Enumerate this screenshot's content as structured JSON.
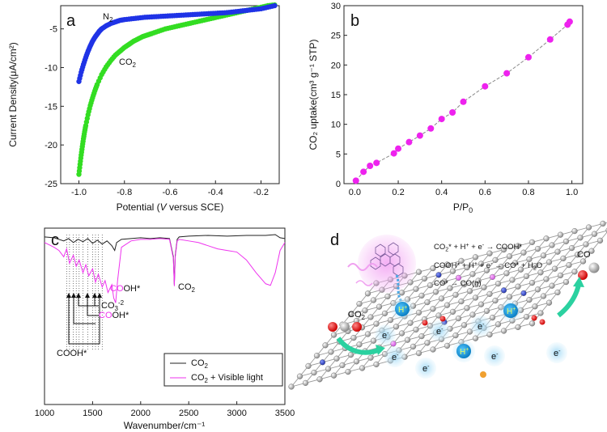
{
  "chart_data": [
    {
      "panel": "a",
      "type": "scatter",
      "xlabel_parts": [
        "Potential (",
        "V",
        " versus SCE)"
      ],
      "ylabel": "Current Density(μA/cm²)",
      "xlim": [
        -1.08,
        -0.12
      ],
      "ylim": [
        -25,
        -2
      ],
      "xticks": [
        "-1.0",
        "-0.8",
        "-0.6",
        "-0.4",
        "-0.2"
      ],
      "yticks": [
        "-25",
        "-20",
        "-15",
        "-10",
        "-5"
      ],
      "xtick_values": [
        -1.0,
        -0.8,
        -0.6,
        -0.4,
        -0.2
      ],
      "ytick_values": [
        -25,
        -20,
        -15,
        -10,
        -5
      ],
      "series": [
        {
          "name": "N2",
          "label": "N",
          "label_sub": "2",
          "color": "#1f33e6",
          "x": [
            -1.0,
            -0.99,
            -0.98,
            -0.97,
            -0.96,
            -0.95,
            -0.94,
            -0.93,
            -0.92,
            -0.91,
            -0.9,
            -0.88,
            -0.86,
            -0.84,
            -0.82,
            -0.8,
            -0.77,
            -0.74,
            -0.71,
            -0.68,
            -0.65,
            -0.62,
            -0.59,
            -0.56,
            -0.53,
            -0.5,
            -0.47,
            -0.44,
            -0.41,
            -0.38,
            -0.35,
            -0.32,
            -0.29,
            -0.26,
            -0.23,
            -0.2,
            -0.17,
            -0.14
          ],
          "y": [
            -11.8,
            -10.6,
            -9.6,
            -8.7,
            -7.9,
            -7.2,
            -6.6,
            -6.1,
            -5.7,
            -5.3,
            -5.0,
            -4.6,
            -4.3,
            -4.1,
            -3.9,
            -3.8,
            -3.7,
            -3.6,
            -3.5,
            -3.45,
            -3.4,
            -3.35,
            -3.3,
            -3.25,
            -3.2,
            -3.15,
            -3.1,
            -3.05,
            -3.0,
            -2.95,
            -2.9,
            -2.8,
            -2.7,
            -2.6,
            -2.5,
            -2.4,
            -2.2,
            -2.0
          ]
        },
        {
          "name": "CO2",
          "label": "CO",
          "label_sub": "2",
          "color": "#33dd22",
          "x": [
            -1.0,
            -0.995,
            -0.99,
            -0.985,
            -0.98,
            -0.975,
            -0.97,
            -0.96,
            -0.95,
            -0.94,
            -0.93,
            -0.92,
            -0.9,
            -0.88,
            -0.86,
            -0.84,
            -0.82,
            -0.8,
            -0.78,
            -0.76,
            -0.74,
            -0.72,
            -0.7,
            -0.68,
            -0.65,
            -0.62,
            -0.59,
            -0.56,
            -0.53,
            -0.5,
            -0.47,
            -0.44,
            -0.41,
            -0.38,
            -0.35,
            -0.32,
            -0.29,
            -0.26,
            -0.23,
            -0.2,
            -0.17,
            -0.14
          ],
          "y": [
            -23.8,
            -22.5,
            -21.3,
            -20.2,
            -19.2,
            -18.3,
            -17.5,
            -16.1,
            -14.9,
            -13.9,
            -13.0,
            -12.2,
            -10.9,
            -9.9,
            -9.1,
            -8.4,
            -7.9,
            -7.4,
            -7.0,
            -6.6,
            -6.3,
            -6.0,
            -5.8,
            -5.6,
            -5.3,
            -5.0,
            -4.8,
            -4.6,
            -4.4,
            -4.2,
            -4.0,
            -3.8,
            -3.6,
            -3.4,
            -3.2,
            -3.0,
            -2.8,
            -2.6,
            -2.4,
            -2.2,
            -2.0,
            -1.9
          ]
        }
      ]
    },
    {
      "panel": "b",
      "type": "line",
      "xlabel": "P/P",
      "xlabel_sub": "0",
      "ylabel": "CO₂ uptake(cm³ g⁻¹ STP)",
      "xlim": [
        -0.05,
        1.05
      ],
      "ylim": [
        0,
        30
      ],
      "xticks": [
        "0.0",
        "0.2",
        "0.4",
        "0.6",
        "0.8",
        "1.0"
      ],
      "yticks": [
        "0",
        "5",
        "10",
        "15",
        "20",
        "25",
        "30"
      ],
      "xtick_values": [
        0.0,
        0.2,
        0.4,
        0.6,
        0.8,
        1.0
      ],
      "ytick_values": [
        0,
        5,
        10,
        15,
        20,
        25,
        30
      ],
      "series": [
        {
          "name": "CO2 uptake",
          "color": "#ee22ee",
          "x": [
            0.005,
            0.04,
            0.07,
            0.1,
            0.18,
            0.2,
            0.25,
            0.3,
            0.35,
            0.4,
            0.45,
            0.5,
            0.6,
            0.7,
            0.8,
            0.9,
            0.98,
            0.99
          ],
          "y": [
            0.5,
            2.0,
            3.0,
            3.5,
            5.1,
            5.9,
            7.0,
            8.1,
            9.3,
            10.9,
            12.0,
            13.8,
            16.4,
            18.6,
            21.3,
            24.3,
            26.8,
            27.3
          ]
        }
      ]
    },
    {
      "panel": "c",
      "type": "line",
      "xlabel": "Wavenumber/cm⁻¹",
      "xlim": [
        1000,
        3500
      ],
      "xticks": [
        "1000",
        "1500",
        "2000",
        "2500",
        "3000",
        "3500"
      ],
      "xtick_values": [
        1000,
        1500,
        2000,
        2500,
        3000,
        3500
      ],
      "ylabel": "",
      "series": [
        {
          "name": "CO2",
          "color": "#222222",
          "x": [
            1000,
            1100,
            1200,
            1250,
            1300,
            1350,
            1400,
            1450,
            1500,
            1550,
            1600,
            1650,
            1700,
            1730,
            1750,
            1800,
            1900,
            2000,
            2100,
            2200,
            2300,
            2340,
            2350,
            2360,
            2380,
            2400,
            2500,
            2700,
            2900,
            3100,
            3300,
            3400,
            3450,
            3500
          ],
          "y": [
            0.95,
            0.94,
            0.9,
            0.93,
            0.88,
            0.92,
            0.89,
            0.93,
            0.87,
            0.91,
            0.86,
            0.9,
            0.84,
            0.78,
            0.88,
            0.92,
            0.93,
            0.94,
            0.93,
            0.94,
            0.93,
            0.7,
            0.35,
            0.72,
            0.92,
            0.95,
            0.96,
            0.97,
            0.96,
            0.97,
            0.97,
            0.98,
            0.94,
            0.93
          ]
        },
        {
          "name": "CO2 + Visible light",
          "color": "#ee33ee",
          "x": [
            1000,
            1050,
            1100,
            1150,
            1200,
            1230,
            1260,
            1300,
            1330,
            1360,
            1400,
            1430,
            1460,
            1500,
            1530,
            1560,
            1600,
            1630,
            1660,
            1700,
            1720,
            1740,
            1760,
            1800,
            1900,
            2000,
            2100,
            2200,
            2300,
            2340,
            2350,
            2360,
            2380,
            2400,
            2500,
            2600,
            2700,
            2800,
            2900,
            3000,
            3100,
            3200,
            3300,
            3350,
            3400,
            3450,
            3500
          ],
          "y": [
            0.88,
            0.85,
            0.82,
            0.78,
            0.7,
            0.8,
            0.62,
            0.72,
            0.58,
            0.66,
            0.5,
            0.6,
            0.46,
            0.55,
            0.38,
            0.48,
            0.32,
            0.4,
            0.25,
            0.35,
            0.18,
            0.12,
            0.4,
            0.82,
            0.9,
            0.92,
            0.92,
            0.93,
            0.92,
            0.68,
            0.33,
            0.7,
            0.9,
            0.92,
            0.9,
            0.88,
            0.84,
            0.8,
            0.78,
            0.76,
            0.66,
            0.5,
            0.36,
            0.34,
            0.5,
            0.78,
            0.88
          ]
        }
      ],
      "annotations": [
        {
          "text": "CO",
          "sub": "2",
          "x": 2370
        },
        {
          "text": "COOH*",
          "colored_prefix": "CO",
          "x": 1760
        },
        {
          "text": "CO",
          "sup": "-2",
          "sub": "3",
          "x": 1450
        },
        {
          "text": "COOH*",
          "colored_prefix": "CO",
          "x": 1300
        },
        {
          "text": "COOH*",
          "x": 1230
        }
      ],
      "legend": {
        "position": "bottom-right",
        "items": [
          "CO2",
          "CO2 + Visible light"
        ],
        "items_sub": [
          "CO",
          "2",
          "CO",
          "2",
          " + Visible light"
        ]
      }
    }
  ],
  "panels": {
    "a": "a",
    "b": "b",
    "c": "c",
    "d": "d"
  },
  "diagram_d": {
    "equations": [
      {
        "parts": [
          "CO",
          "2",
          "* + H",
          "+",
          " + e",
          "-",
          " → COOH*"
        ]
      },
      {
        "parts": [
          "COOH* + H",
          "+",
          " + e",
          "-",
          " → CO* + H",
          "2",
          "O"
        ]
      },
      {
        "parts": [
          "CO* → CO(g)"
        ]
      }
    ],
    "co2_label": "CO",
    "co2_sub": "2",
    "co_label": "CO",
    "hplus_label": "H",
    "hplus_sup": "+",
    "electron_label": "e",
    "electron_sup": "-",
    "colors": {
      "sheet": "#999999",
      "green_arrow": "#22cc99",
      "pink_glow": "#ee88ee",
      "hplus": "#1aa0e8",
      "electron_glow": "#aadcf5"
    }
  }
}
